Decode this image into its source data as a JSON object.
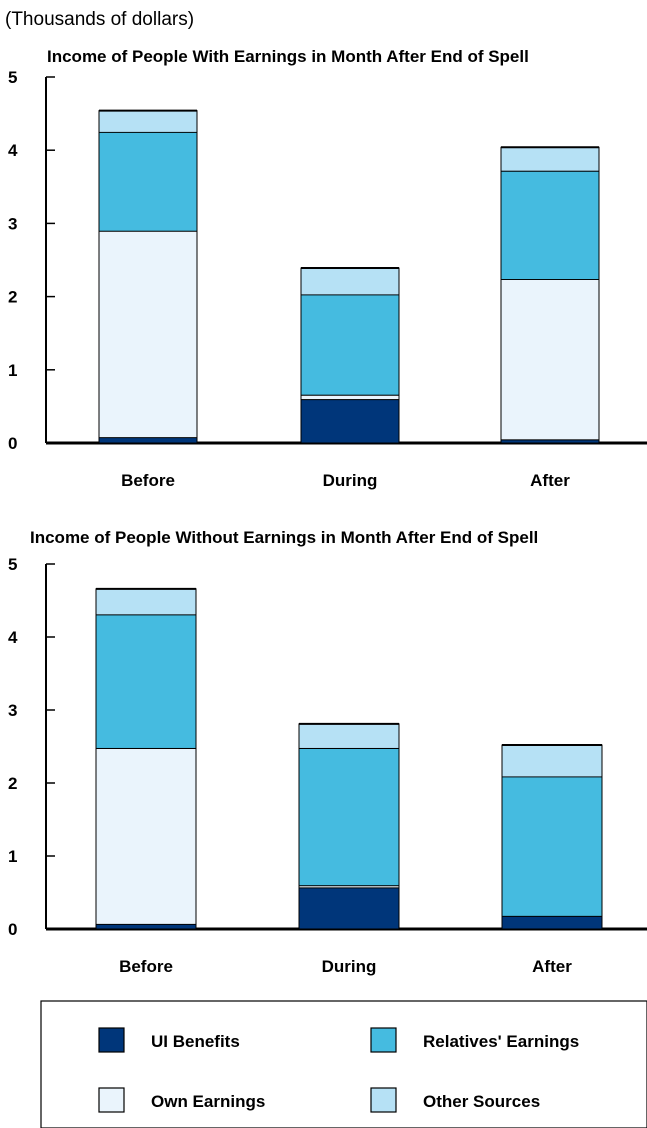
{
  "unit_note": "(Thousands of dollars)",
  "chart_data": [
    {
      "type": "bar",
      "stacked": true,
      "title": "Income of People With Earnings in Month After End of Spell",
      "categories": [
        "Before",
        "During",
        "After"
      ],
      "ylim": [
        0,
        5
      ],
      "yticks": [
        0,
        1,
        2,
        3,
        4,
        5
      ],
      "grid": false,
      "series": [
        {
          "name": "UI Benefits",
          "values": [
            0.08,
            0.6,
            0.05
          ]
        },
        {
          "name": "Own Earnings",
          "values": [
            2.82,
            0.06,
            2.19
          ]
        },
        {
          "name": "Relatives' Earnings",
          "values": [
            1.35,
            1.37,
            1.48
          ]
        },
        {
          "name": "Other Sources",
          "values": [
            0.29,
            0.36,
            0.32
          ]
        }
      ]
    },
    {
      "type": "bar",
      "stacked": true,
      "title": "Income of People Without Earnings in Month After End of Spell",
      "categories": [
        "Before",
        "During",
        "After"
      ],
      "ylim": [
        0,
        5
      ],
      "yticks": [
        0,
        1,
        2,
        3,
        4,
        5
      ],
      "grid": false,
      "series": [
        {
          "name": "UI Benefits",
          "values": [
            0.07,
            0.57,
            0.18
          ]
        },
        {
          "name": "Own Earnings",
          "values": [
            2.41,
            0.03,
            0.0
          ]
        },
        {
          "name": "Relatives' Earnings",
          "values": [
            1.83,
            1.88,
            1.91
          ]
        },
        {
          "name": "Other Sources",
          "values": [
            0.35,
            0.33,
            0.43
          ]
        }
      ]
    }
  ],
  "legend": {
    "placement": "bottom",
    "items": [
      {
        "label": "UI Benefits",
        "color": "#00367a"
      },
      {
        "label": "Relatives' Earnings",
        "color": "#45bbe0"
      },
      {
        "label": "Own Earnings",
        "color": "#eaf4fc"
      },
      {
        "label": "Other Sources",
        "color": "#b6e1f5"
      }
    ]
  },
  "colors": {
    "UI Benefits": "#00367a",
    "Own Earnings": "#eaf4fc",
    "Relatives' Earnings": "#45bbe0",
    "Other Sources": "#b6e1f5"
  }
}
